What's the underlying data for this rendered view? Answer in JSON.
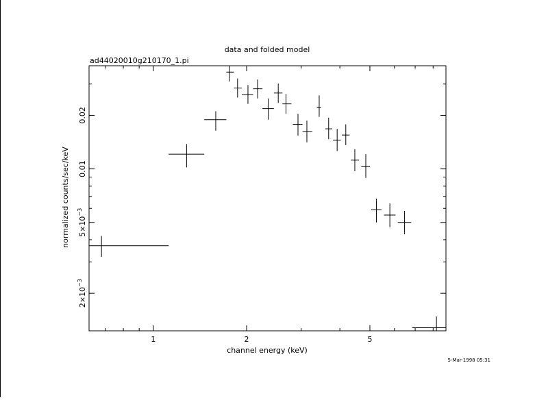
{
  "chart_data": {
    "type": "scatter",
    "title": "data and folded model",
    "subtitle": "ad44020010g210170_1.pi",
    "xlabel": "channel energy (keV)",
    "ylabel": "normalized counts/sec/keV",
    "timestamp": "5-Mar-1998 05:31",
    "x_scale": "log",
    "y_scale": "log",
    "xlim": [
      0.62,
      8.8
    ],
    "ylim": [
      0.00123,
      0.038
    ],
    "x_ticks": [
      {
        "value": 1,
        "label": "1"
      },
      {
        "value": 2,
        "label": "2"
      },
      {
        "value": 5,
        "label": "5"
      }
    ],
    "y_ticks": [
      {
        "value": 0.002,
        "label": "2×10",
        "exponent": "−3"
      },
      {
        "value": 0.005,
        "label": "5×10",
        "exponent": "−3"
      },
      {
        "value": 0.01,
        "label": "0.01"
      },
      {
        "value": 0.02,
        "label": "0.02"
      }
    ],
    "points": [
      {
        "x": 0.68,
        "x_lo": 0.62,
        "x_hi": 1.12,
        "y": 0.0037,
        "y_lo": 0.0032,
        "y_hi": 0.0042
      },
      {
        "x": 1.28,
        "x_lo": 1.12,
        "x_hi": 1.46,
        "y": 0.0121,
        "y_lo": 0.0102,
        "y_hi": 0.0138
      },
      {
        "x": 1.59,
        "x_lo": 1.46,
        "x_hi": 1.72,
        "y": 0.0189,
        "y_lo": 0.0164,
        "y_hi": 0.0211
      },
      {
        "x": 1.76,
        "x_lo": 1.72,
        "x_hi": 1.82,
        "y": 0.035,
        "y_lo": 0.031,
        "y_hi": 0.038
      },
      {
        "x": 1.87,
        "x_lo": 1.82,
        "x_hi": 1.93,
        "y": 0.0285,
        "y_lo": 0.0252,
        "y_hi": 0.0322
      },
      {
        "x": 2.02,
        "x_lo": 1.93,
        "x_hi": 2.1,
        "y": 0.0262,
        "y_lo": 0.0232,
        "y_hi": 0.0296
      },
      {
        "x": 2.17,
        "x_lo": 2.1,
        "x_hi": 2.25,
        "y": 0.0282,
        "y_lo": 0.0249,
        "y_hi": 0.0318
      },
      {
        "x": 2.35,
        "x_lo": 2.25,
        "x_hi": 2.45,
        "y": 0.0218,
        "y_lo": 0.0189,
        "y_hi": 0.0249
      },
      {
        "x": 2.53,
        "x_lo": 2.45,
        "x_hi": 2.61,
        "y": 0.0267,
        "y_lo": 0.0235,
        "y_hi": 0.0302
      },
      {
        "x": 2.68,
        "x_lo": 2.61,
        "x_hi": 2.79,
        "y": 0.0232,
        "y_lo": 0.0204,
        "y_hi": 0.0264
      },
      {
        "x": 2.93,
        "x_lo": 2.82,
        "x_hi": 3.03,
        "y": 0.0178,
        "y_lo": 0.0154,
        "y_hi": 0.0204
      },
      {
        "x": 3.13,
        "x_lo": 3.03,
        "x_hi": 3.26,
        "y": 0.0162,
        "y_lo": 0.0141,
        "y_hi": 0.0187
      },
      {
        "x": 3.43,
        "x_lo": 3.37,
        "x_hi": 3.48,
        "y": 0.0222,
        "y_lo": 0.0196,
        "y_hi": 0.0259
      },
      {
        "x": 3.68,
        "x_lo": 3.59,
        "x_hi": 3.78,
        "y": 0.0168,
        "y_lo": 0.0147,
        "y_hi": 0.0194
      },
      {
        "x": 3.92,
        "x_lo": 3.8,
        "x_hi": 4.03,
        "y": 0.0145,
        "y_lo": 0.0126,
        "y_hi": 0.0168
      },
      {
        "x": 4.18,
        "x_lo": 4.06,
        "x_hi": 4.3,
        "y": 0.0155,
        "y_lo": 0.0136,
        "y_hi": 0.0178
      },
      {
        "x": 4.47,
        "x_lo": 4.34,
        "x_hi": 4.61,
        "y": 0.0112,
        "y_lo": 0.0097,
        "y_hi": 0.0129
      },
      {
        "x": 4.85,
        "x_lo": 4.69,
        "x_hi": 5.0,
        "y": 0.0103,
        "y_lo": 0.0089,
        "y_hi": 0.0121
      },
      {
        "x": 5.25,
        "x_lo": 5.05,
        "x_hi": 5.45,
        "y": 0.0059,
        "y_lo": 0.005,
        "y_hi": 0.0068
      },
      {
        "x": 5.8,
        "x_lo": 5.55,
        "x_hi": 6.05,
        "y": 0.0055,
        "y_lo": 0.0047,
        "y_hi": 0.0064
      },
      {
        "x": 6.47,
        "x_lo": 6.15,
        "x_hi": 6.8,
        "y": 0.005,
        "y_lo": 0.0043,
        "y_hi": 0.0058
      },
      {
        "x": 8.2,
        "x_lo": 6.85,
        "x_hi": 8.8,
        "y": 0.00128,
        "y_lo": 0.00123,
        "y_hi": 0.00148
      }
    ]
  }
}
